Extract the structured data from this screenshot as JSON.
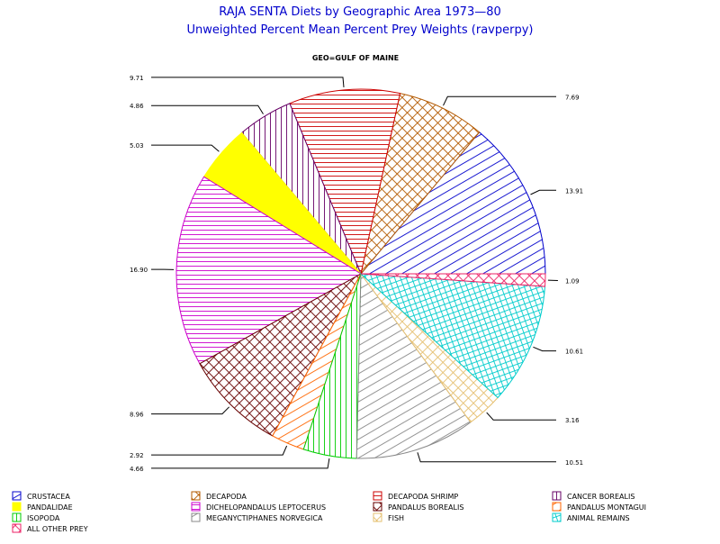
{
  "chart_data": {
    "type": "pie",
    "title": "RAJA SENTA Diets by Geographic Area 1973—80",
    "subtitle": "Unweighted Percent Mean Percent Prey  Weights (ravperpy)",
    "panel_label": "GEO=GULF OF MAINE",
    "slices": [
      {
        "name": "CRUSTACEA",
        "value": 13.91,
        "label": "13.91",
        "color": "#0000cc",
        "pattern": "hatch-up"
      },
      {
        "name": "DECAPODA",
        "value": 7.69,
        "label": "7.69",
        "color": "#b35900",
        "pattern": "crosshatch"
      },
      {
        "name": "DECAPODA SHRIMP",
        "value": 9.71,
        "label": "9.71",
        "color": "#cc0000",
        "pattern": "horizontal"
      },
      {
        "name": "CANCER BOREALIS",
        "value": 4.86,
        "label": "4.86",
        "color": "#660066",
        "pattern": "vertical"
      },
      {
        "name": "PANDALIDAE",
        "value": 5.03,
        "label": "5.03",
        "color": "#ffff00",
        "pattern": "solid"
      },
      {
        "name": "DICHELOPANDALUS LEPTOCERUS",
        "value": 16.9,
        "label": "16.90",
        "color": "#cc00cc",
        "pattern": "horizontal"
      },
      {
        "name": "PANDALUS BOREALIS",
        "value": 8.96,
        "label": "8.96",
        "color": "#660000",
        "pattern": "crosshatch"
      },
      {
        "name": "PANDALUS MONTAGUI",
        "value": 2.92,
        "label": "2.92",
        "color": "#ff6600",
        "pattern": "hatch-up"
      },
      {
        "name": "ISOPODA",
        "value": 4.66,
        "label": "4.66",
        "color": "#00cc00",
        "pattern": "vertical"
      },
      {
        "name": "MEGANYCTIPHANES NORVEGICA",
        "value": 10.51,
        "label": "10.51",
        "color": "#888888",
        "pattern": "hatch-up"
      },
      {
        "name": "FISH",
        "value": 3.16,
        "label": "3.16",
        "color": "#e6c070",
        "pattern": "crosshatch"
      },
      {
        "name": "ANIMAL REMAINS",
        "value": 10.61,
        "label": "10.61",
        "color": "#00cccc",
        "pattern": "grid"
      },
      {
        "name": "ALL OTHER PREY",
        "value": 1.09,
        "label": "1.09",
        "color": "#ee2266",
        "pattern": "crosshatch"
      }
    ],
    "legend": [
      "CRUSTACEA",
      "DECAPODA",
      "DECAPODA SHRIMP",
      "CANCER BOREALIS",
      "PANDALIDAE",
      "DICHELOPANDALUS LEPTOCERUS",
      "PANDALUS BOREALIS",
      "PANDALUS MONTAGUI",
      "ISOPODA",
      "MEGANYCTIPHANES NORVEGICA",
      "FISH",
      "ANIMAL REMAINS",
      "ALL OTHER PREY"
    ],
    "legend_placement": "bottom"
  }
}
